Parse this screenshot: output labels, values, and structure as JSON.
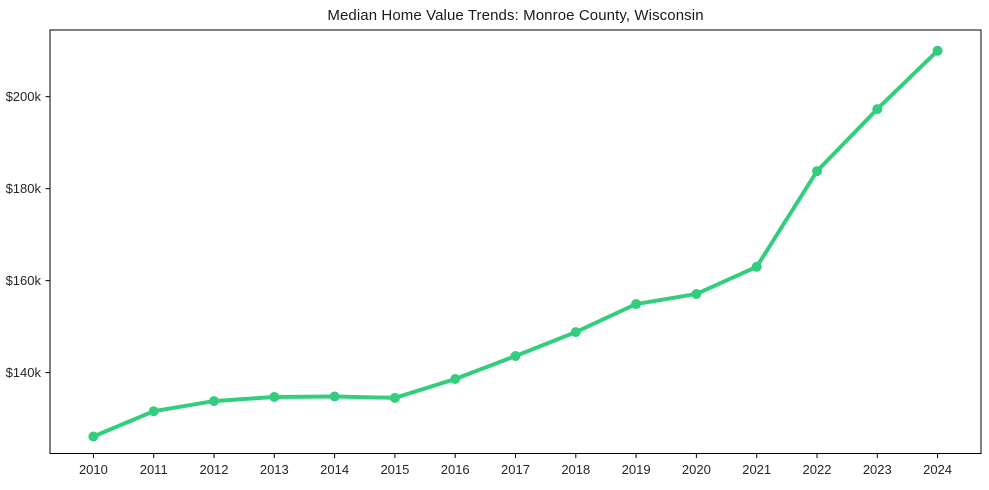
{
  "colors": {
    "line": "#32ce7e",
    "spine": "#000000",
    "tick_text": "#262626",
    "title_text": "#1a1a1a",
    "background": "#ffffff"
  },
  "chart_data": {
    "type": "line",
    "title": "Median Home Value Trends: Monroe County, Wisconsin",
    "xlabel": "",
    "ylabel": "",
    "x": [
      2010,
      2011,
      2012,
      2013,
      2014,
      2015,
      2016,
      2017,
      2018,
      2019,
      2020,
      2021,
      2022,
      2023,
      2024
    ],
    "x_tick_labels": [
      "2010",
      "2011",
      "2012",
      "2013",
      "2014",
      "2015",
      "2016",
      "2017",
      "2018",
      "2019",
      "2020",
      "2021",
      "2022",
      "2023",
      "2024"
    ],
    "series": [
      {
        "name": "Median Home Value",
        "color": "#32ce7e",
        "values": [
          126100,
          131600,
          133800,
          134700,
          134800,
          134500,
          138600,
          143600,
          148800,
          154900,
          157100,
          163000,
          183800,
          197300,
          210000
        ]
      }
    ],
    "y_ticks": [
      {
        "value": 140000,
        "label": "$140k"
      },
      {
        "value": 160000,
        "label": "$160k"
      },
      {
        "value": 180000,
        "label": "$180k"
      },
      {
        "value": 200000,
        "label": "$200k"
      }
    ],
    "xlim": [
      2009.28,
      2024.72
    ],
    "ylim": [
      122400,
      214500
    ],
    "grid": false,
    "legend": false
  }
}
